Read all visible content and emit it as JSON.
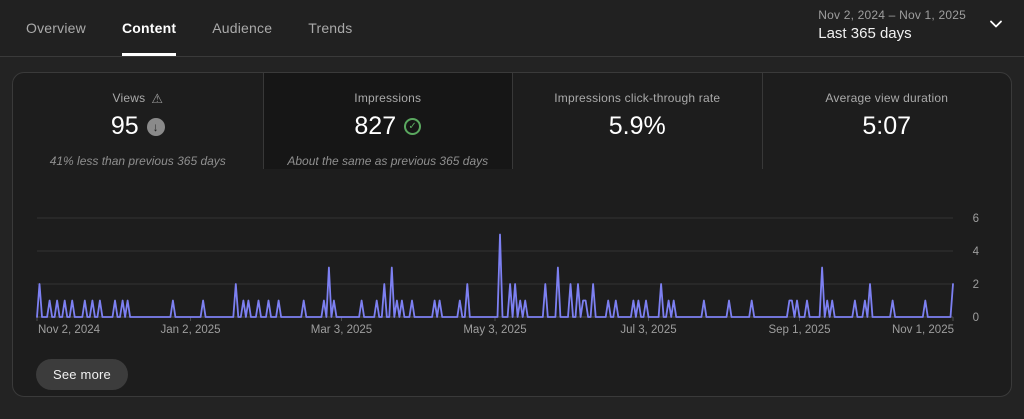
{
  "header": {
    "tabs": [
      {
        "label": "Overview",
        "active": false
      },
      {
        "label": "Content",
        "active": true
      },
      {
        "label": "Audience",
        "active": false
      },
      {
        "label": "Trends",
        "active": false
      }
    ],
    "date_range": "Nov 2, 2024 – Nov 1, 2025",
    "date_preset": "Last 365 days"
  },
  "metric_cards": [
    {
      "label": "Views",
      "value": "95",
      "trend": "down",
      "subtitle": "41% less than previous 365 days",
      "selected": false
    },
    {
      "label": "Impressions",
      "value": "827",
      "trend": "flat",
      "subtitle": "About the same as previous 365 days",
      "selected": true
    },
    {
      "label": "Impressions click-through rate",
      "value": "5.9%",
      "trend": "none",
      "subtitle": "",
      "selected": false
    },
    {
      "label": "Average view duration",
      "value": "5:07",
      "trend": "none",
      "subtitle": "",
      "selected": false
    }
  ],
  "chart_data": {
    "type": "line",
    "x_axis": {
      "start_date": "Nov 2, 2024",
      "end_date": "Nov 1, 2025",
      "days": 365,
      "tick_labels": [
        "Nov 2, 2024",
        "Jan 2, 2025",
        "Mar 3, 2025",
        "May 3, 2025",
        "Jul 3, 2025",
        "Sep 1, 2025",
        "Nov 1, 2025"
      ],
      "tick_days": [
        0,
        61,
        121,
        182,
        243,
        303,
        364
      ]
    },
    "y_axis": {
      "ticks": [
        0,
        2,
        4,
        6
      ],
      "ylim": [
        0,
        6
      ],
      "position": "right"
    },
    "baseline_value": 0,
    "spikes": [
      [
        1,
        2
      ],
      [
        5,
        1
      ],
      [
        8,
        1
      ],
      [
        11,
        1
      ],
      [
        14,
        1
      ],
      [
        19,
        1
      ],
      [
        22,
        1
      ],
      [
        25,
        1
      ],
      [
        31,
        1
      ],
      [
        34,
        1
      ],
      [
        36,
        1
      ],
      [
        54,
        1
      ],
      [
        66,
        1
      ],
      [
        79,
        2
      ],
      [
        82,
        1
      ],
      [
        84,
        1
      ],
      [
        88,
        1
      ],
      [
        92,
        1
      ],
      [
        96,
        1
      ],
      [
        106,
        1
      ],
      [
        114,
        1
      ],
      [
        116,
        3
      ],
      [
        118,
        1
      ],
      [
        129,
        1
      ],
      [
        135,
        1
      ],
      [
        138,
        2
      ],
      [
        141,
        3
      ],
      [
        143,
        1
      ],
      [
        145,
        1
      ],
      [
        149,
        1
      ],
      [
        158,
        1
      ],
      [
        160,
        1
      ],
      [
        168,
        1
      ],
      [
        171,
        2
      ],
      [
        184,
        5
      ],
      [
        188,
        2
      ],
      [
        190,
        2
      ],
      [
        192,
        1
      ],
      [
        194,
        1
      ],
      [
        202,
        2
      ],
      [
        207,
        3
      ],
      [
        212,
        2
      ],
      [
        215,
        2
      ],
      [
        217,
        1
      ],
      [
        218,
        1
      ],
      [
        221,
        2
      ],
      [
        227,
        1
      ],
      [
        230,
        1
      ],
      [
        237,
        1
      ],
      [
        239,
        1
      ],
      [
        242,
        1
      ],
      [
        248,
        2
      ],
      [
        251,
        1
      ],
      [
        253,
        1
      ],
      [
        265,
        1
      ],
      [
        275,
        1
      ],
      [
        284,
        1
      ],
      [
        299,
        1
      ],
      [
        300,
        1
      ],
      [
        302,
        1
      ],
      [
        306,
        1
      ],
      [
        312,
        3
      ],
      [
        314,
        1
      ],
      [
        316,
        1
      ],
      [
        325,
        1
      ],
      [
        329,
        1
      ],
      [
        331,
        2
      ],
      [
        340,
        1
      ],
      [
        353,
        1
      ],
      [
        364,
        2
      ]
    ]
  },
  "footer": {
    "see_more_label": "See more"
  },
  "colors": {
    "line": "#7d80f2",
    "grid": "#323232",
    "baseline": "#4d4d4d",
    "axis_text": "#9e9e9e",
    "accent_green": "#5aa85f"
  }
}
